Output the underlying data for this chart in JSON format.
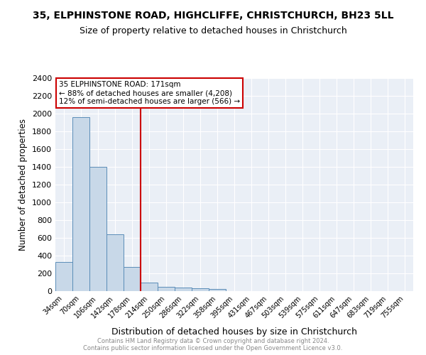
{
  "title": "35, ELPHINSTONE ROAD, HIGHCLIFFE, CHRISTCHURCH, BH23 5LL",
  "subtitle": "Size of property relative to detached houses in Christchurch",
  "xlabel": "Distribution of detached houses by size in Christchurch",
  "ylabel": "Number of detached properties",
  "bar_color": "#c8d8e8",
  "bar_edge_color": "#5b8db8",
  "categories": [
    "34sqm",
    "70sqm",
    "106sqm",
    "142sqm",
    "178sqm",
    "214sqm",
    "250sqm",
    "286sqm",
    "322sqm",
    "358sqm",
    "395sqm",
    "431sqm",
    "467sqm",
    "503sqm",
    "539sqm",
    "575sqm",
    "611sqm",
    "647sqm",
    "683sqm",
    "719sqm",
    "755sqm"
  ],
  "values": [
    325,
    1960,
    1400,
    640,
    270,
    100,
    48,
    40,
    30,
    22,
    0,
    0,
    0,
    0,
    0,
    0,
    0,
    0,
    0,
    0,
    0
  ],
  "ylim": [
    0,
    2400
  ],
  "yticks": [
    0,
    200,
    400,
    600,
    800,
    1000,
    1200,
    1400,
    1600,
    1800,
    2000,
    2200,
    2400
  ],
  "vline_x": 4.5,
  "vline_color": "#cc0000",
  "annotation_title": "35 ELPHINSTONE ROAD: 171sqm",
  "annotation_line1": "← 88% of detached houses are smaller (4,208)",
  "annotation_line2": "12% of semi-detached houses are larger (566) →",
  "annotation_box_color": "#ffffff",
  "annotation_box_edge": "#cc0000",
  "background_color": "#eaeff6",
  "footer1": "Contains HM Land Registry data © Crown copyright and database right 2024.",
  "footer2": "Contains public sector information licensed under the Open Government Licence v3.0.",
  "title_fontsize": 10,
  "subtitle_fontsize": 9
}
